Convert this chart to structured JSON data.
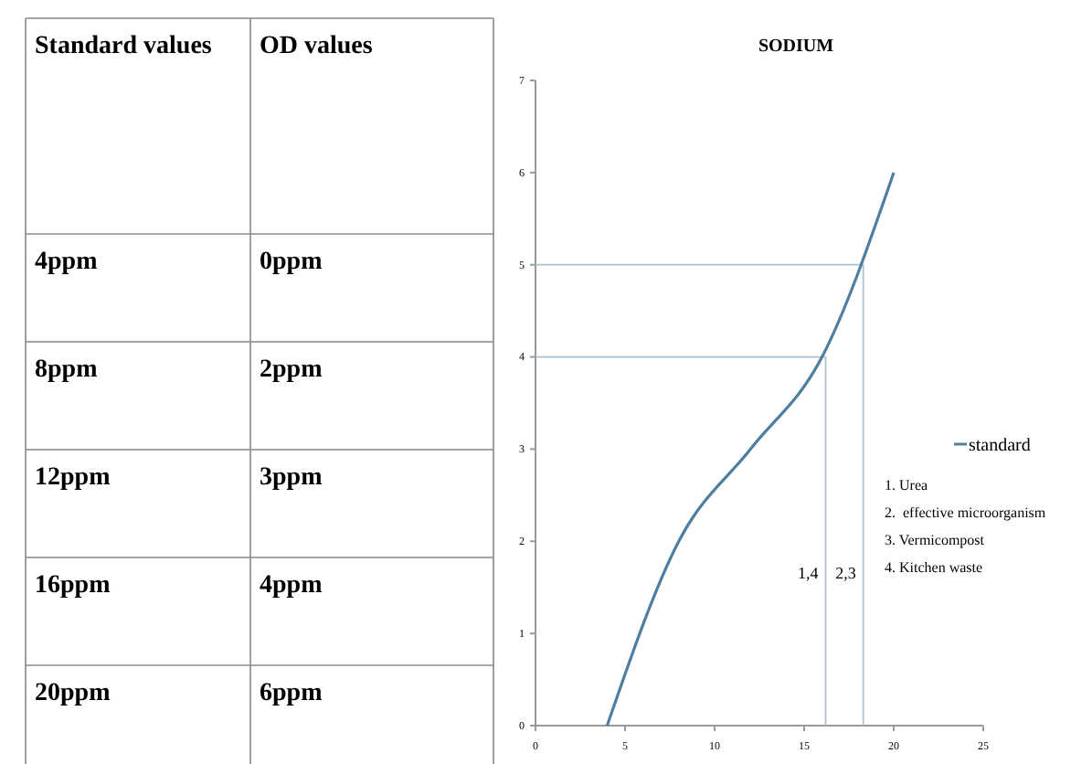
{
  "chart_data": {
    "type": "line",
    "title": "SODIUM",
    "x": [
      4,
      8,
      12,
      16,
      20
    ],
    "series": [
      {
        "name": "standard",
        "color": "#4f7fa0",
        "values": [
          0,
          2,
          3,
          4,
          6
        ]
      }
    ],
    "xlim": [
      0,
      25
    ],
    "xticks": [
      0,
      5,
      10,
      15,
      20,
      25
    ],
    "ylim": [
      0,
      7
    ],
    "yticks": [
      0,
      1,
      2,
      3,
      4,
      5,
      6,
      7
    ],
    "ref_lines": [
      {
        "axis": "y",
        "value": 4,
        "color": "#a9c2d3"
      },
      {
        "axis": "y",
        "value": 5,
        "color": "#a9c2d3"
      },
      {
        "axis": "x",
        "value": 16.2,
        "color": "#a9c2d3"
      },
      {
        "axis": "x",
        "value": 18.3,
        "color": "#a9c2d3"
      }
    ],
    "legend": "right",
    "annotations": [
      "Standard values",
      "OD values",
      "4ppm",
      "0ppm",
      "8ppm",
      "2ppm",
      "12ppm",
      "3ppm",
      "16ppm",
      "4ppm",
      "20ppm",
      "6ppm",
      {
        "text": "1,4",
        "x": 16.2,
        "y": 1.6
      },
      {
        "text": "2,3",
        "x": 18.3,
        "y": 1.6
      },
      "1. Urea",
      "2.  effective microorganism",
      "3. Vermicompost",
      "4. Kitchen waste"
    ]
  }
}
